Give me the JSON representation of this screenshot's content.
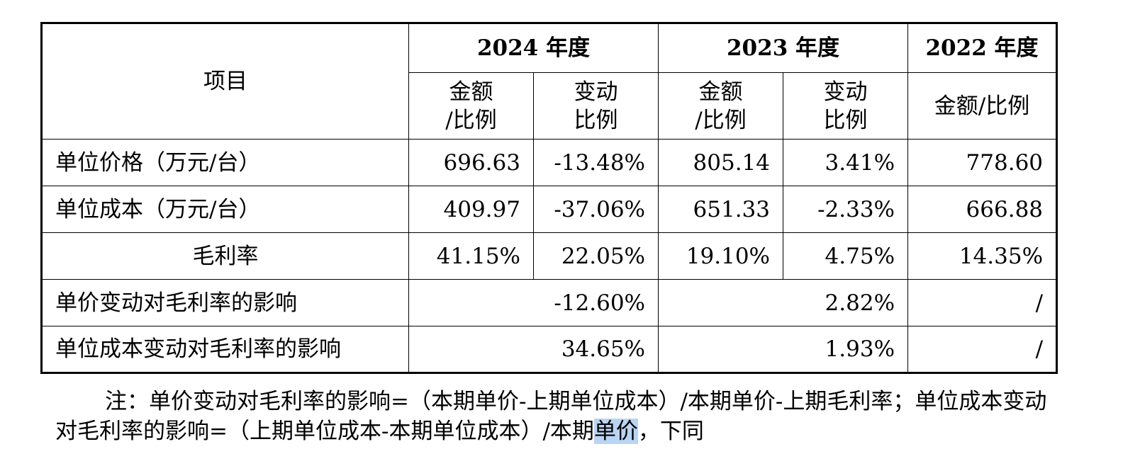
{
  "table": {
    "item_header": "项目",
    "years": [
      {
        "label": "2024 年度"
      },
      {
        "label": "2023 年度"
      },
      {
        "label": "2022 年度"
      }
    ],
    "subheaders": {
      "y2024_amount": "金额\n/比例",
      "y2024_change": "变动\n比例",
      "y2023_amount": "金额\n/比例",
      "y2023_change": "变动\n比例",
      "y2022_amount": "金额/比例"
    },
    "rows": [
      {
        "label": "单位价格（万元/台）",
        "v1": "696.63",
        "c1": "-13.48%",
        "v2": "805.14",
        "c2": "3.41%",
        "v3": "778.60"
      },
      {
        "label": "单位成本（万元/台）",
        "v1": "409.97",
        "c1": "-37.06%",
        "v2": "651.33",
        "c2": "-2.33%",
        "v3": "666.88"
      },
      {
        "label": "毛利率",
        "v1": "41.15%",
        "c1": "22.05%",
        "v2": "19.10%",
        "c2": "4.75%",
        "v3": "14.35%"
      }
    ],
    "impact_rows": [
      {
        "label": "单价变动对毛利率的影响",
        "y2024": "-12.60%",
        "y2023": "2.82%",
        "y2022": "/"
      },
      {
        "label": "单位成本变动对毛利率的影响",
        "y2024": "34.65%",
        "y2023": "1.93%",
        "y2022": "/"
      }
    ]
  },
  "note": {
    "part1": "注：单价变动对毛利率的影响=（本期单价-上期单位成本）/本期单价-上期毛利率；单位成本变动对毛利率的影响=（上期单位成本-本期单位成本）/本期",
    "highlight": "单价",
    "part2": "，下同"
  }
}
